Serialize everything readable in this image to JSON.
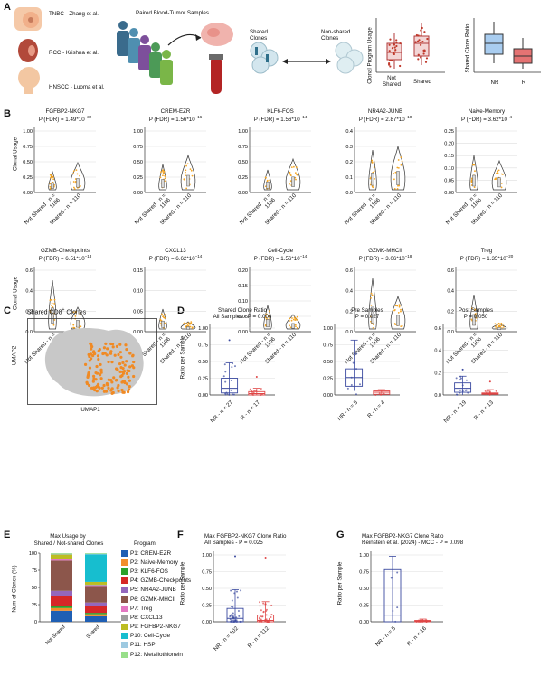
{
  "panel_letters": [
    "A",
    "B",
    "C",
    "D",
    "E",
    "F",
    "G"
  ],
  "panelA": {
    "cohorts": [
      "TNBC - Zhang et al.",
      "RCC - Krishna et al.",
      "HNSCC - Luoma et al."
    ],
    "paired_title": "Paired Blood-Tumor Samples",
    "shared_label": "Shared\nClones",
    "nonshared_label": "Non-shared\nClones",
    "mini1": {
      "ylabel": "Clonal Program Usage",
      "categories": [
        "Not\nShared",
        "Shared"
      ]
    },
    "mini2": {
      "ylabel": "Shared Clone Ratio",
      "categories": [
        "NR",
        "R"
      ]
    },
    "colors": {
      "not_shared": "#c0392b",
      "nr": "#8fbbe6",
      "r": "#e06060"
    }
  },
  "panelB": {
    "ylabel": "Clonal Usage",
    "xcats": [
      "Not Shared - n = 1106",
      "Shared - n = 110"
    ],
    "violin_fill": "#f5a623",
    "programs": [
      {
        "name": "FGFBP2-NKG7",
        "p": "P (FDR) = 1.49*10",
        "exp": "−32",
        "ticks": [
          "0.00",
          "0.25",
          "0.50",
          "0.75",
          "1.00"
        ],
        "ymax": 1.0
      },
      {
        "name": "CREM-EZR",
        "p": "P (FDR) = 1.56*10",
        "exp": "−16",
        "ticks": [
          "0.00",
          "0.25",
          "0.50",
          "0.75",
          "1.00"
        ],
        "ymax": 1.0
      },
      {
        "name": "KLF6-FOS",
        "p": "P (FDR) = 1.56*10",
        "exp": "−14",
        "ticks": [
          "0.00",
          "0.25",
          "0.50",
          "0.75",
          "1.00"
        ],
        "ymax": 1.0
      },
      {
        "name": "NR4A2-JUNB",
        "p": "P (FDR) = 2.87*10",
        "exp": "−10",
        "ticks": [
          "0.0",
          "0.1",
          "0.2",
          "0.3",
          "0.4"
        ],
        "ymax": 0.4
      },
      {
        "name": "Naive-Memory",
        "p": "P (FDR) = 3.62*10",
        "exp": "−4",
        "ticks": [
          "0.00",
          "0.05",
          "0.10",
          "0.15",
          "0.20",
          "0.25"
        ],
        "ymax": 0.25
      },
      {
        "name": "GZMB-Checkpoints",
        "p": "P (FDR) = 6.51*10",
        "exp": "−13",
        "ticks": [
          "0.0",
          "0.2",
          "0.4",
          "0.6"
        ],
        "ymax": 0.6
      },
      {
        "name": "CXCL13",
        "p": "P (FDR) = 6.62*10",
        "exp": "−14",
        "ticks": [
          "0.00",
          "0.05",
          "0.10",
          "0.15"
        ],
        "ymax": 0.15
      },
      {
        "name": "Cell-Cycle",
        "p": "P (FDR) = 1.56*10",
        "exp": "−14",
        "ticks": [
          "0.00",
          "0.05",
          "0.10",
          "0.15",
          "0.20"
        ],
        "ymax": 0.2
      },
      {
        "name": "GZMK-MHCII",
        "p": "P (FDR) = 3.06*10",
        "exp": "−18",
        "ticks": [
          "0.0",
          "0.2",
          "0.4",
          "0.6"
        ],
        "ymax": 0.6
      },
      {
        "name": "Treg",
        "p": "P (FDR) = 1.35*10",
        "exp": "−20",
        "ticks": [
          "0.0",
          "0.2",
          "0.4",
          "0.6"
        ],
        "ymax": 0.6
      }
    ]
  },
  "panelC": {
    "title": "Shared CD8",
    "title_sup": "+",
    "title_tail": " Clones",
    "xlabel": "UMAP1",
    "ylabel": "UMAP2",
    "point_color": "#f08a24"
  },
  "panelD": {
    "ylabel": "Ratio per Sample",
    "plots": [
      {
        "title1": "Shared Clone Ratio",
        "title2": "All Samples - P = 0.006",
        "xcats": [
          "NR - n = 27",
          "R - n = 17"
        ],
        "ticks": [
          "0.00",
          "0.25",
          "0.50",
          "0.75",
          "1.00"
        ],
        "ymax": 1.0
      },
      {
        "title1": "Pre Samples",
        "title2": "P = 0.027",
        "xcats": [
          "NR - n = 8",
          "R - n = 4"
        ],
        "ticks": [
          "0.00",
          "0.25",
          "0.50",
          "0.75",
          "1.00"
        ],
        "ymax": 1.0
      },
      {
        "title1": "Post Samples",
        "title2": "P = 0.050",
        "xcats": [
          "NR - n = 19",
          "R - n = 13"
        ],
        "ticks": [
          "0.0",
          "0.2",
          "0.4",
          "0.6"
        ],
        "ymax": 0.6
      }
    ],
    "colors": {
      "nr": "#3b4aa0",
      "r": "#e04646"
    }
  },
  "panelE": {
    "title1": "Max Usage by",
    "title2": "Shared / Not-shared Clones",
    "ylabel": "Num of Clones (%)",
    "ticks": [
      "0",
      "25",
      "50",
      "75",
      "100"
    ],
    "categories": [
      "Not Shared",
      "Shared"
    ],
    "legend_title": "Program",
    "programs": [
      {
        "label": "P1: CREM-EZR",
        "color": "#1f5fb4"
      },
      {
        "label": "P2: Naive-Memory",
        "color": "#f28e2b"
      },
      {
        "label": "P3: KLF6-FOS",
        "color": "#2ca02c"
      },
      {
        "label": "P4: GZMB-Checkpoints",
        "color": "#d62728"
      },
      {
        "label": "P5: NR4A2-JUNB",
        "color": "#9467bd"
      },
      {
        "label": "P6: GZMK-MHCII",
        "color": "#8c564b"
      },
      {
        "label": "P7: Treg",
        "color": "#e377c2"
      },
      {
        "label": "P8: CXCL13",
        "color": "#9e9e9e"
      },
      {
        "label": "P9: FGFBP2-NKG7",
        "color": "#bcbd22"
      },
      {
        "label": "P10: Cell-Cycle",
        "color": "#17becf"
      },
      {
        "label": "P11: HSP",
        "color": "#9ecae1"
      },
      {
        "label": "P12: Metallothionein",
        "color": "#98df8a"
      }
    ]
  },
  "panelF": {
    "title1": "Max FGFBP2-NKG7 Clone Ratio",
    "title2": "All Samples - P = 0.025",
    "ylabel": "Ratio per Sample",
    "xcats": [
      "NR - n = 102",
      "R - n = 112"
    ],
    "ticks": [
      "0.00",
      "0.25",
      "0.50",
      "0.75",
      "1.00"
    ]
  },
  "panelG": {
    "title1": "Max FGFBP2-NKG7 Clone Ratio",
    "title2": "Reinstein et al. (2024) - MCC - P = 0.098",
    "ylabel": "Ratio per Sample",
    "xcats": [
      "NR - n = 5",
      "R - n = 16"
    ],
    "ticks": [
      "0.00",
      "0.25",
      "0.50",
      "0.75",
      "1.00"
    ]
  },
  "chart_data": [
    {
      "type": "bar",
      "title": "Max Usage by Shared / Not-shared Clones",
      "categories": [
        "Not Shared",
        "Shared"
      ],
      "ylabel": "Num of Clones (%)",
      "ylim": [
        0,
        100
      ],
      "series": [
        {
          "name": "P1: CREM-EZR",
          "values": [
            16,
            8
          ]
        },
        {
          "name": "P2: Naive-Memory",
          "values": [
            4,
            3
          ]
        },
        {
          "name": "P3: KLF6-FOS",
          "values": [
            3,
            2
          ]
        },
        {
          "name": "P4: GZMB-Checkpoints",
          "values": [
            15,
            10
          ]
        },
        {
          "name": "P5: NR4A2-JUNB",
          "values": [
            7,
            5
          ]
        },
        {
          "name": "P6: GZMK-MHCII",
          "values": [
            44,
            24
          ]
        },
        {
          "name": "P7: Treg",
          "values": [
            2,
            1
          ]
        },
        {
          "name": "P8: CXCL13",
          "values": [
            1,
            1
          ]
        },
        {
          "name": "P9: FGFBP2-NKG7",
          "values": [
            6,
            4
          ]
        },
        {
          "name": "P10: Cell-Cycle",
          "values": [
            0,
            40
          ]
        },
        {
          "name": "P11: HSP",
          "values": [
            1,
            1
          ]
        },
        {
          "name": "P12: Metallothionein",
          "values": [
            1,
            1
          ]
        }
      ]
    },
    {
      "type": "box",
      "title": "Shared Clone Ratio - All Samples",
      "categories": [
        "NR",
        "R"
      ],
      "medians": [
        0.1,
        0.02
      ],
      "q1": [
        0.03,
        0.0
      ],
      "q3": [
        0.25,
        0.05
      ]
    },
    {
      "type": "box",
      "title": "Max FGFBP2-NKG7 Clone Ratio - All Samples",
      "categories": [
        "NR",
        "R"
      ],
      "medians": [
        0.05,
        0.02
      ],
      "q1": [
        0.0,
        0.0
      ],
      "q3": [
        0.2,
        0.1
      ]
    },
    {
      "type": "box",
      "title": "Max FGFBP2-NKG7 Clone Ratio - MCC",
      "categories": [
        "NR",
        "R"
      ],
      "medians": [
        0.1,
        0.0
      ],
      "q1": [
        0.0,
        0.0
      ],
      "q3": [
        0.78,
        0.02
      ]
    }
  ]
}
